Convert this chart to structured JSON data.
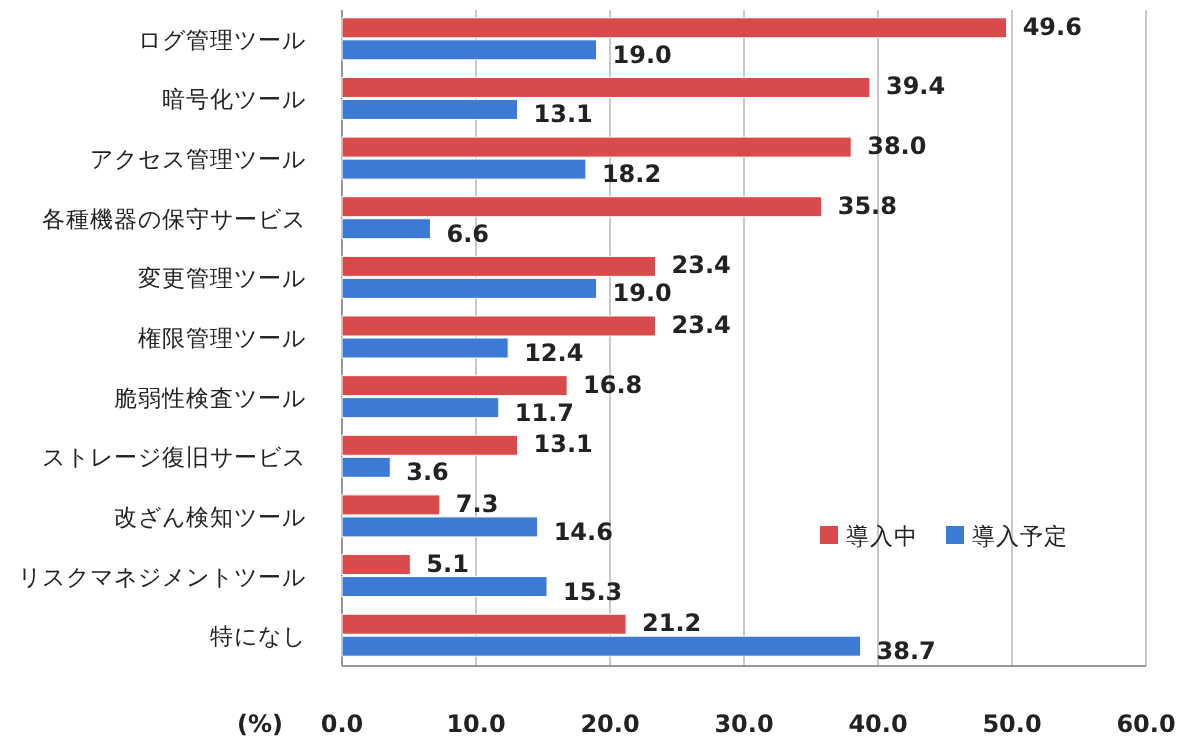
{
  "chart_data": {
    "type": "bar",
    "orientation": "horizontal",
    "xlabel": "(%)",
    "categories": [
      "ログ管理ツール",
      "暗号化ツール",
      "アクセス管理ツール",
      "各種機器の保守サービス",
      "変更管理ツール",
      "権限管理ツール",
      "脆弱性検査ツール",
      "ストレージ復旧サービス",
      "改ざん検知ツール",
      "リスクマネジメントツール",
      "特になし"
    ],
    "series": [
      {
        "name": "導入中",
        "color": "#d94a4a",
        "values": [
          49.6,
          39.4,
          38.0,
          35.8,
          23.4,
          23.4,
          16.8,
          13.1,
          7.3,
          5.1,
          21.2
        ],
        "value_labels": [
          "49.6",
          "39.4",
          "38.0",
          "35.8",
          "23.4",
          "23.4",
          "16.8",
          "13.1",
          "7.3",
          "5.1",
          "21.2"
        ]
      },
      {
        "name": "導入予定",
        "color": "#3d7ad4",
        "values": [
          19.0,
          13.1,
          18.2,
          6.6,
          19.0,
          12.4,
          11.7,
          3.6,
          14.6,
          15.3,
          38.7
        ],
        "value_labels": [
          "19.0",
          "13.1",
          "18.2",
          "6.6",
          "19.0",
          "12.4",
          "11.7",
          "3.6",
          "14.6",
          "15.3",
          "38.7"
        ]
      }
    ],
    "xlim": [
      0,
      60
    ],
    "xticks": [
      {
        "value": 0,
        "label": "0.0"
      },
      {
        "value": 10,
        "label": "10.0"
      },
      {
        "value": 20,
        "label": "20.0"
      },
      {
        "value": 30,
        "label": "30.0"
      },
      {
        "value": 40,
        "label": "40.0"
      },
      {
        "value": 50,
        "label": "50.0"
      },
      {
        "value": 60,
        "label": "60.0"
      }
    ],
    "grid": "x",
    "legend": "bottom right"
  }
}
